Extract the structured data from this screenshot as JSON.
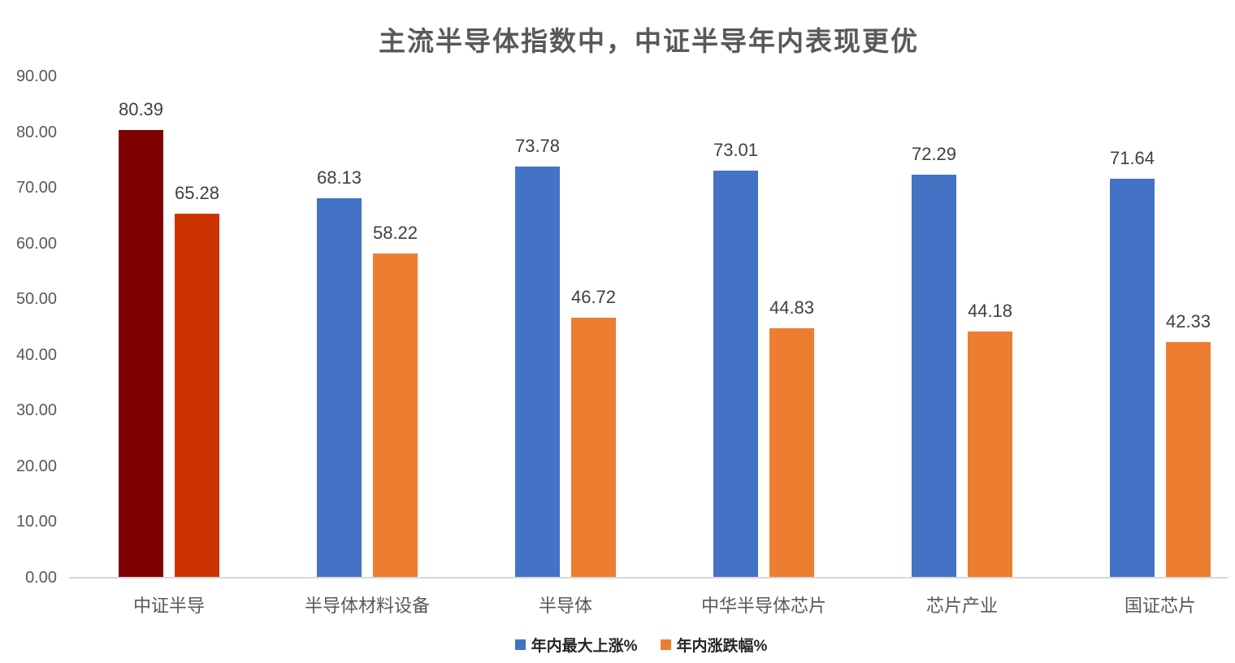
{
  "chart_data": {
    "type": "bar",
    "title": "主流半导体指数中，中证半导年内表现更优",
    "categories": [
      "中证半导",
      "半导体材料设备",
      "半导体",
      "中华半导体芯片",
      "芯片产业",
      "国证芯片"
    ],
    "series": [
      {
        "name": "年内最大上涨%",
        "color": "#4472C4",
        "first_bar_color": "#7F0000",
        "values": [
          80.39,
          68.13,
          73.78,
          73.01,
          72.29,
          71.64
        ]
      },
      {
        "name": "年内涨跌幅%",
        "color": "#ED7D31",
        "first_bar_color": "#CC3300",
        "values": [
          65.28,
          58.22,
          46.72,
          44.83,
          44.18,
          42.33
        ]
      }
    ],
    "data_labels": [
      "80.39",
      "68.13",
      "73.78",
      "73.01",
      "72.29",
      "71.64",
      "65.28",
      "58.22",
      "46.72",
      "44.83",
      "44.18",
      "42.33"
    ],
    "ylim": [
      0,
      90
    ],
    "ytick_step": 10,
    "ytick_labels": [
      "0.00",
      "10.00",
      "20.00",
      "30.00",
      "40.00",
      "50.00",
      "60.00",
      "70.00",
      "80.00",
      "90.00"
    ],
    "grid": false,
    "legend_position": "bottom",
    "highlight_category": "中证半导",
    "colors": {
      "title_text": "#595959",
      "axis_text": "#595959",
      "data_label_text": "#404040",
      "legend_text": "#262626",
      "axis_line": "#D9D9D9"
    }
  }
}
